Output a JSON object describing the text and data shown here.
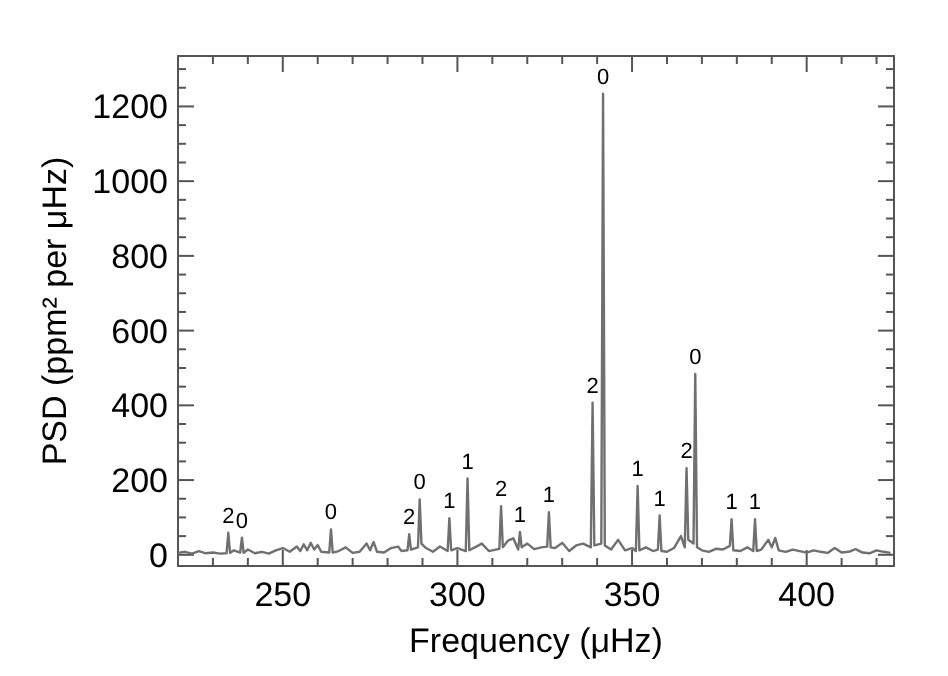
{
  "chart_data": {
    "type": "line",
    "xlabel": "Frequency (μHz)",
    "ylabel": "PSD (ppm² per μHz)",
    "xlim": [
      220,
      425
    ],
    "ylim": [
      -30,
      1335
    ],
    "xticks": [
      {
        "value": 220,
        "label": null
      },
      {
        "value": 230,
        "label": null
      },
      {
        "value": 240,
        "label": null
      },
      250,
      {
        "value": 260,
        "label": null
      },
      {
        "value": 270,
        "label": null
      },
      {
        "value": 280,
        "label": null
      },
      {
        "value": 290,
        "label": null
      },
      300,
      {
        "value": 310,
        "label": null
      },
      {
        "value": 320,
        "label": null
      },
      {
        "value": 330,
        "label": null
      },
      {
        "value": 340,
        "label": null
      },
      350,
      {
        "value": 360,
        "label": null
      },
      {
        "value": 370,
        "label": null
      },
      {
        "value": 380,
        "label": null
      },
      {
        "value": 390,
        "label": null
      },
      400,
      {
        "value": 410,
        "label": null
      },
      {
        "value": 420,
        "label": null
      }
    ],
    "yticks": [
      0,
      {
        "value": 50,
        "label": null
      },
      {
        "value": 100,
        "label": null
      },
      {
        "value": 150,
        "label": null
      },
      200,
      {
        "value": 250,
        "label": null
      },
      {
        "value": 300,
        "label": null
      },
      {
        "value": 350,
        "label": null
      },
      400,
      {
        "value": 450,
        "label": null
      },
      {
        "value": 500,
        "label": null
      },
      {
        "value": 550,
        "label": null
      },
      600,
      {
        "value": 650,
        "label": null
      },
      {
        "value": 700,
        "label": null
      },
      {
        "value": 750,
        "label": null
      },
      800,
      {
        "value": 850,
        "label": null
      },
      {
        "value": 900,
        "label": null
      },
      {
        "value": 950,
        "label": null
      },
      1000,
      {
        "value": 1050,
        "label": null
      },
      {
        "value": 1100,
        "label": null
      },
      {
        "value": 1150,
        "label": null
      },
      1200,
      {
        "value": 1250,
        "label": null
      },
      {
        "value": 1300,
        "label": null
      }
    ],
    "grid": false,
    "marker": "none",
    "series": [
      {
        "color": "#707070",
        "x": [
          220,
          222,
          224,
          226,
          228,
          230,
          232,
          233.9,
          234.4,
          234.9,
          236,
          237.8,
          238.3,
          238.8,
          240,
          242,
          244,
          246,
          248,
          250,
          252,
          254,
          255,
          256,
          257,
          258,
          259,
          260,
          261,
          263.3,
          263.8,
          264.3,
          266,
          268,
          270,
          272,
          274,
          275,
          276,
          277,
          279,
          281,
          283,
          284,
          285.7,
          286.2,
          286.7,
          288.7,
          289.2,
          289.7,
          291,
          293,
          295,
          297.2,
          297.7,
          298.2,
          300,
          302.4,
          302.9,
          303.4,
          305,
          307,
          309,
          312,
          312.5,
          313,
          314.5,
          316,
          317.4,
          317.9,
          318.4,
          320,
          322,
          324,
          325.7,
          326.2,
          326.7,
          328,
          330,
          332,
          334,
          336,
          338.2,
          338.7,
          339.2,
          341.2,
          341.7,
          342.2,
          344,
          346,
          348,
          350,
          351.1,
          351.6,
          352.1,
          354,
          356,
          357.4,
          357.9,
          358.4,
          360,
          362,
          364,
          365.1,
          365.6,
          366.1,
          367.6,
          368.1,
          368.6,
          370,
          372,
          374,
          376,
          378,
          378.5,
          379,
          381,
          383,
          384.7,
          385.2,
          385.7,
          387,
          389,
          390,
          391,
          392,
          394,
          396,
          398,
          400,
          402,
          404,
          406,
          408,
          410,
          412,
          414,
          416,
          418,
          420,
          422,
          424
        ],
        "values": [
          5,
          8,
          3,
          10,
          4,
          6,
          3,
          4,
          59,
          5,
          12,
          6,
          46,
          5,
          14,
          4,
          8,
          3,
          12,
          18,
          8,
          22,
          10,
          28,
          12,
          32,
          14,
          26,
          8,
          6,
          68,
          6,
          10,
          20,
          5,
          8,
          30,
          12,
          34,
          8,
          6,
          18,
          22,
          10,
          12,
          55,
          14,
          20,
          148,
          30,
          18,
          8,
          22,
          10,
          98,
          12,
          18,
          10,
          204,
          12,
          20,
          30,
          10,
          16,
          130,
          20,
          38,
          44,
          14,
          61,
          20,
          30,
          15,
          20,
          22,
          114,
          20,
          18,
          32,
          10,
          25,
          30,
          20,
          407,
          25,
          30,
          1234,
          25,
          14,
          40,
          12,
          18,
          10,
          184,
          12,
          20,
          10,
          14,
          105,
          10,
          8,
          18,
          50,
          20,
          232,
          40,
          30,
          484,
          20,
          12,
          8,
          16,
          14,
          24,
          95,
          12,
          10,
          20,
          10,
          95,
          10,
          14,
          40,
          20,
          45,
          12,
          8,
          14,
          10,
          6,
          12,
          8,
          5,
          18,
          6,
          8,
          15,
          6,
          4,
          12,
          8,
          5
        ]
      }
    ],
    "annotations": [
      {
        "text": "0",
        "x": 238.3,
        "y": 46
      },
      {
        "text": "0",
        "x": 263.8,
        "y": 68
      },
      {
        "text": "0",
        "x": 289.2,
        "y": 148
      },
      {
        "text": "0",
        "x": 341.7,
        "y": 1234
      },
      {
        "text": "0",
        "x": 368.1,
        "y": 484
      },
      {
        "text": "1",
        "x": 297.7,
        "y": 98
      },
      {
        "text": "1",
        "x": 302.9,
        "y": 204
      },
      {
        "text": "1",
        "x": 317.9,
        "y": 61
      },
      {
        "text": "1",
        "x": 326.2,
        "y": 114
      },
      {
        "text": "1",
        "x": 351.6,
        "y": 184
      },
      {
        "text": "1",
        "x": 357.9,
        "y": 105
      },
      {
        "text": "1",
        "x": 378.5,
        "y": 95
      },
      {
        "text": "1",
        "x": 385.2,
        "y": 95
      },
      {
        "text": "2",
        "x": 234.4,
        "y": 59
      },
      {
        "text": "2",
        "x": 286.2,
        "y": 55
      },
      {
        "text": "2",
        "x": 312.5,
        "y": 130
      },
      {
        "text": "2",
        "x": 338.7,
        "y": 407
      },
      {
        "text": "2",
        "x": 365.6,
        "y": 232
      }
    ]
  }
}
